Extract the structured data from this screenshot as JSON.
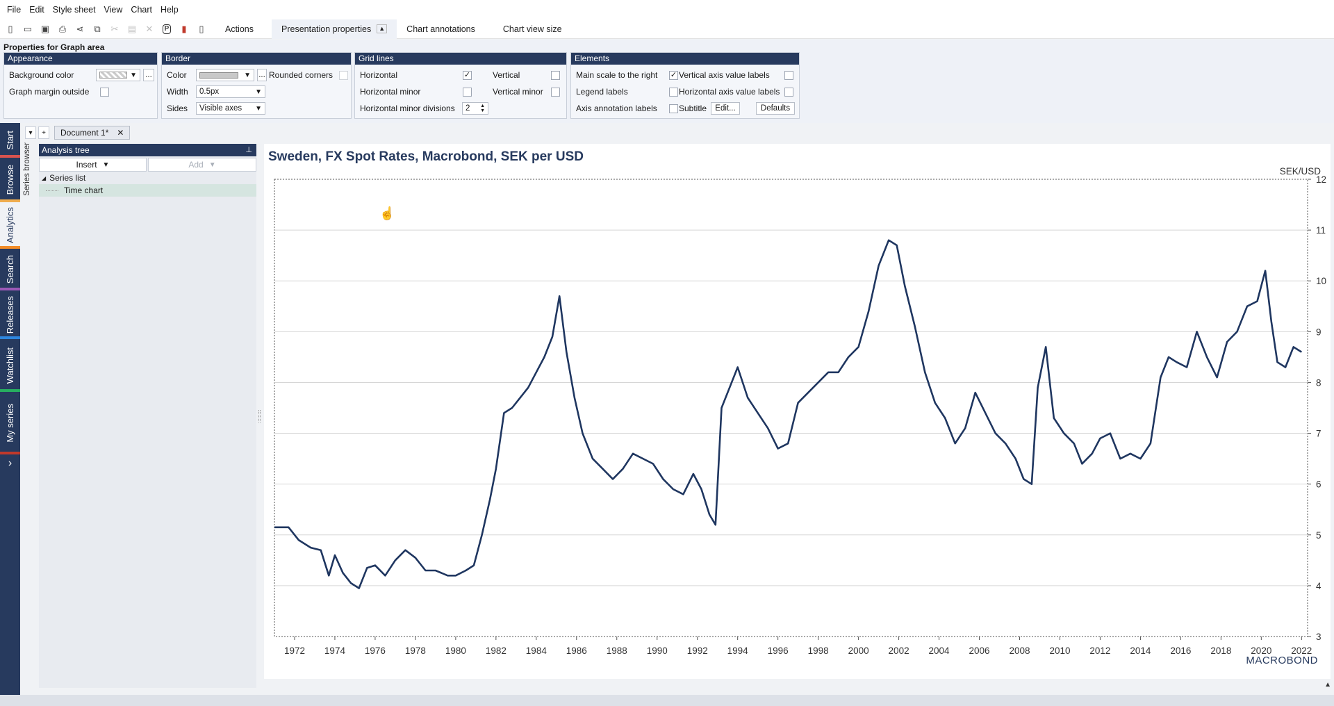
{
  "menu": [
    "File",
    "Edit",
    "Style sheet",
    "View",
    "Chart",
    "Help"
  ],
  "toolbar": {
    "icons": [
      "new-icon",
      "open-icon",
      "save-icon",
      "print-icon",
      "share-icon",
      "copy-icon",
      "cut-icon",
      "paste-icon",
      "delete-icon",
      "presentation-icon",
      "chart-icon",
      "ruler-icon"
    ],
    "presentation_glyph": "P",
    "tabs": {
      "actions": "Actions",
      "presentation": "Presentation properties",
      "annotations": "Chart annotations",
      "viewsize": "Chart view size"
    }
  },
  "props": {
    "title": "Properties for Graph area",
    "appearance": {
      "head": "Appearance",
      "bg_color_label": "Background color",
      "graph_margin_label": "Graph margin outside",
      "more": "..."
    },
    "border": {
      "head": "Border",
      "color_label": "Color",
      "width_label": "Width",
      "width_value": "0.5px",
      "sides_label": "Sides",
      "sides_value": "Visible axes",
      "rounded_label": "Rounded corners",
      "more": "..."
    },
    "grid": {
      "head": "Grid lines",
      "horizontal": "Horizontal",
      "horizontal_minor": "Horizontal minor",
      "horizontal_minor_div": "Horizontal minor divisions",
      "div_value": "2",
      "vertical": "Vertical",
      "vertical_minor": "Vertical minor"
    },
    "elements": {
      "head": "Elements",
      "main_scale": "Main scale to the right",
      "legend": "Legend labels",
      "axis_annotation": "Axis annotation labels",
      "vaxis_labels": "Vertical axis value labels",
      "haxis_labels": "Horizontal axis value labels",
      "subtitle": "Subtitle",
      "edit": "Edit...",
      "defaults": "Defaults"
    }
  },
  "rail": [
    {
      "label": "Start",
      "color": "#d9534f"
    },
    {
      "label": "Browse",
      "color": "#f0ad4e"
    },
    {
      "label": "Analytics",
      "color": "#f28c28"
    },
    {
      "label": "Search",
      "color": "#9b59b6"
    },
    {
      "label": "Releases",
      "color": "#2e86de"
    },
    {
      "label": "Watchlist",
      "color": "#27ae60"
    },
    {
      "label": "My series",
      "color": "#c0392b"
    }
  ],
  "rail_expand": "›",
  "series_browser": "Series browser",
  "doc_tab": {
    "label": "Document 1*",
    "close": "✕",
    "dropdown": "▾",
    "add": "+"
  },
  "tree": {
    "head": "Analysis tree",
    "insert": "Insert",
    "add": "Add",
    "series_list": "Series list",
    "time_chart": "Time chart"
  },
  "chart": {
    "title": "Sweden, FX Spot Rates, Macrobond, SEK per USD",
    "unit": "SEK/USD",
    "logo": "MACROBOND",
    "line_color": "#1f3660"
  },
  "chart_data": {
    "type": "line",
    "title": "Sweden, FX Spot Rates, Macrobond, SEK per USD",
    "ylabel": "SEK/USD",
    "ylim": [
      3,
      12
    ],
    "yticks": [
      3,
      4,
      5,
      6,
      7,
      8,
      9,
      10,
      11,
      12
    ],
    "xlim": [
      1971.0,
      2022.3
    ],
    "xticks": [
      1972,
      1974,
      1976,
      1978,
      1980,
      1982,
      1984,
      1986,
      1988,
      1990,
      1992,
      1994,
      1996,
      1998,
      2000,
      2002,
      2004,
      2006,
      2008,
      2010,
      2012,
      2014,
      2016,
      2018,
      2020,
      2022
    ],
    "grid": "horizontal",
    "series": [
      {
        "x": [
          1971.0,
          1971.7,
          1972.2,
          1972.8,
          1973.3,
          1973.7,
          1974.0,
          1974.4,
          1974.8,
          1975.2,
          1975.6,
          1976.0,
          1976.5,
          1977.0,
          1977.5,
          1978.0,
          1978.5,
          1979.0,
          1979.6,
          1980.0,
          1980.5,
          1980.9,
          1981.3,
          1981.7,
          1982.0,
          1982.4,
          1982.8,
          1983.2,
          1983.6,
          1984.0,
          1984.4,
          1984.8,
          1985.15,
          1985.5,
          1985.9,
          1986.3,
          1986.8,
          1987.3,
          1987.8,
          1988.3,
          1988.8,
          1989.3,
          1989.8,
          1990.3,
          1990.8,
          1991.3,
          1991.8,
          1992.2,
          1992.6,
          1992.9,
          1993.2,
          1993.6,
          1994.0,
          1994.5,
          1995.0,
          1995.5,
          1996.0,
          1996.5,
          1997.0,
          1997.5,
          1998.0,
          1998.5,
          1999.0,
          1999.5,
          2000.0,
          2000.5,
          2001.0,
          2001.5,
          2001.9,
          2002.3,
          2002.8,
          2003.3,
          2003.8,
          2004.3,
          2004.8,
          2005.3,
          2005.8,
          2006.3,
          2006.8,
          2007.3,
          2007.8,
          2008.2,
          2008.6,
          2008.9,
          2009.3,
          2009.7,
          2010.2,
          2010.7,
          2011.1,
          2011.6,
          2012.0,
          2012.5,
          2013.0,
          2013.5,
          2014.0,
          2014.5,
          2015.0,
          2015.4,
          2015.8,
          2016.3,
          2016.8,
          2017.3,
          2017.8,
          2018.3,
          2018.8,
          2019.3,
          2019.8,
          2020.2,
          2020.5,
          2020.8,
          2021.2,
          2021.6,
          2022.0
        ],
        "y": [
          5.15,
          5.15,
          4.9,
          4.75,
          4.7,
          4.2,
          4.6,
          4.25,
          4.05,
          3.95,
          4.35,
          4.4,
          4.2,
          4.5,
          4.7,
          4.55,
          4.3,
          4.3,
          4.2,
          4.2,
          4.3,
          4.4,
          5.0,
          5.7,
          6.3,
          7.4,
          7.5,
          7.7,
          7.9,
          8.2,
          8.5,
          8.9,
          9.7,
          8.6,
          7.7,
          7.0,
          6.5,
          6.3,
          6.1,
          6.3,
          6.6,
          6.5,
          6.4,
          6.1,
          5.9,
          5.8,
          6.2,
          5.9,
          5.4,
          5.2,
          7.5,
          7.9,
          8.3,
          7.7,
          7.4,
          7.1,
          6.7,
          6.8,
          7.6,
          7.8,
          8.0,
          8.2,
          8.2,
          8.5,
          8.7,
          9.4,
          10.3,
          10.8,
          10.7,
          9.9,
          9.1,
          8.2,
          7.6,
          7.3,
          6.8,
          7.1,
          7.8,
          7.4,
          7.0,
          6.8,
          6.5,
          6.1,
          6.0,
          7.9,
          8.7,
          7.3,
          7.0,
          6.8,
          6.4,
          6.6,
          6.9,
          7.0,
          6.5,
          6.6,
          6.5,
          6.8,
          8.1,
          8.5,
          8.4,
          8.3,
          9.0,
          8.5,
          8.1,
          8.8,
          9.0,
          9.5,
          9.6,
          10.2,
          9.2,
          8.4,
          8.3,
          8.7,
          8.6
        ]
      }
    ]
  }
}
